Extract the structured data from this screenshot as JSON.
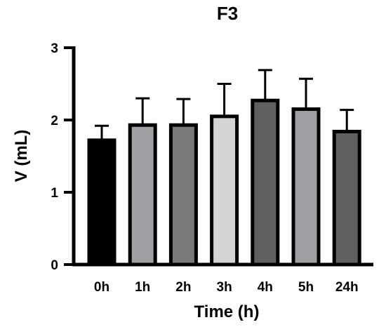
{
  "chart_data": {
    "type": "bar",
    "title": "F3",
    "xlabel": "Time (h)",
    "ylabel": "V (mL)",
    "categories": [
      "0h",
      "1h",
      "2h",
      "3h",
      "4h",
      "5h",
      "24h"
    ],
    "values": [
      1.72,
      1.93,
      1.93,
      2.05,
      2.27,
      2.15,
      1.84
    ],
    "errors": [
      0.2,
      0.37,
      0.36,
      0.45,
      0.42,
      0.42,
      0.3
    ],
    "ylim": [
      0,
      3
    ],
    "yticks": [
      0,
      1,
      2,
      3
    ],
    "bar_colors": [
      "#000000",
      "#a0a0a4",
      "#7a7a7a",
      "#d4d4d4",
      "#606060",
      "#a0a0a4",
      "#606060"
    ],
    "grid": false
  }
}
